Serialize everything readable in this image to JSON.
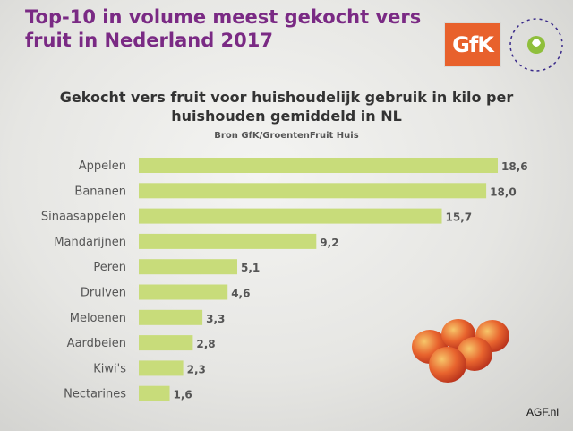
{
  "slide": {
    "title": "Top-10 in volume meest gekocht vers fruit in Nederland 2017",
    "logo_gfk": "GfK",
    "logo_gf": "GroentenFruit Huis",
    "watermark": "AGF.nl"
  },
  "chart_data": {
    "type": "bar",
    "orientation": "horizontal",
    "title": "Gekocht vers fruit voor huishoudelijk gebruik in kilo per huishouden gemiddeld in NL",
    "subtitle": "Bron GfK/GroentenFruit Huis",
    "categories": [
      "Appelen",
      "Bananen",
      "Sinaasappelen",
      "Mandarijnen",
      "Peren",
      "Druiven",
      "Meloenen",
      "Aardbeien",
      "Kiwi's",
      "Nectarines"
    ],
    "values": [
      18.6,
      18.0,
      15.7,
      9.2,
      5.1,
      4.6,
      3.3,
      2.8,
      2.3,
      1.6
    ],
    "value_labels": [
      "18,6",
      "18,0",
      "15,7",
      "9,2",
      "5,1",
      "4,6",
      "3,3",
      "2,8",
      "2,3",
      "1,6"
    ],
    "xlim": [
      0,
      18.6
    ],
    "grid": false,
    "legend": "none",
    "bar_color": "#c8dc7a",
    "label_color": "#555555"
  }
}
